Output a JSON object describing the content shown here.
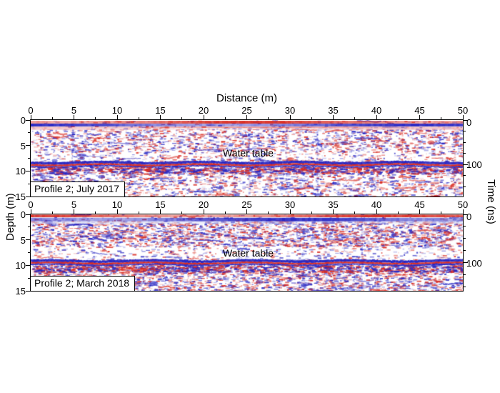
{
  "figure": {
    "x_axis": {
      "title": "Distance (m)",
      "major_ticks": [
        0,
        5,
        10,
        15,
        20,
        25,
        30,
        35,
        40,
        45,
        50
      ],
      "minor_step": 2.5,
      "range": [
        0,
        50
      ]
    },
    "depth_axis": {
      "label": "Depth (m)",
      "major_ticks": [
        0,
        5,
        10,
        15
      ],
      "minor_step": 2.5,
      "range": [
        0,
        15
      ]
    },
    "time_axis": {
      "label": "Time (ns)",
      "major_ticks": [
        0,
        100
      ],
      "minor_step": 25
    },
    "colors": {
      "positive_amplitude": "#d92b21",
      "negative_amplitude": "#2726c3",
      "pink_wash": "#f3bcc2",
      "lavender_wash": "#d9daf2",
      "background": "#ffffff",
      "frame": "#000000",
      "text": "#000000"
    },
    "panels": [
      {
        "id": "july2017",
        "label": "Profile 2; July 2017",
        "annotation": "Water table",
        "water_table_depth_m": 8.7,
        "time_100ns_depth_m": 8.7,
        "seed": 20177,
        "upper_amp": 0.8,
        "mid_amp": 0.5,
        "lower_amp": 0.75,
        "dash_count": 5000,
        "wiggle_count": 95,
        "streak_count": 10,
        "top_bands": [
          {
            "y": 1.0,
            "h": 4.0,
            "c": "pos",
            "a": 0.95
          },
          {
            "y": 5.0,
            "h": 4.0,
            "c": "neg",
            "a": 0.95
          },
          {
            "y": 9.5,
            "h": 1.2,
            "c": "pos",
            "a": 0.75
          },
          {
            "y": 10.7,
            "h": 3.0,
            "c": "pink",
            "a": 0.8
          }
        ]
      },
      {
        "id": "march2018",
        "label": "Profile 2; March 2018",
        "annotation": "Water table",
        "water_table_depth_m": 9.5,
        "time_100ns_depth_m": 9.5,
        "seed": 20183,
        "upper_amp": 1.0,
        "mid_amp": 0.35,
        "lower_amp": 0.95,
        "dash_count": 6500,
        "wiggle_count": 120,
        "streak_count": 8,
        "top_bands": [
          {
            "y": 0.5,
            "h": 3.5,
            "c": "pos",
            "a": 0.95
          },
          {
            "y": 4.8,
            "h": 5.0,
            "c": "neg",
            "a": 0.95
          },
          {
            "y": 10.0,
            "h": 3.0,
            "c": "lav",
            "a": 0.7
          }
        ]
      }
    ]
  },
  "chart_data": [
    {
      "type": "heatmap",
      "title": "Profile 2; July 2017",
      "xlabel": "Distance (m)",
      "x_range": [
        0,
        50
      ],
      "x_ticks": [
        0,
        5,
        10,
        15,
        20,
        25,
        30,
        35,
        40,
        45,
        50
      ],
      "ylabel": "Depth (m)",
      "y_range": [
        0,
        15
      ],
      "y_ticks": [
        0,
        5,
        10,
        15
      ],
      "ylabel_right": "Time (ns)",
      "right_ticks": [
        0,
        100
      ],
      "colormap": "blue-white-red GPR amplitude",
      "annotations": [
        {
          "text": "Water table",
          "x_m": 25,
          "depth_m": 8.7
        }
      ],
      "key_features": [
        "high-amplitude horizontal direct-wave band at 0-1 m depth",
        "continuous high-amplitude water-table reflector at ~8.7 m depth (~100 ns)",
        "scattered diffraction speckle between 2 m and 8 m depth and below the reflector"
      ]
    },
    {
      "type": "heatmap",
      "title": "Profile 2; March 2018",
      "xlabel": "Distance (m)",
      "x_range": [
        0,
        50
      ],
      "x_ticks": [
        0,
        5,
        10,
        15,
        20,
        25,
        30,
        35,
        40,
        45,
        50
      ],
      "ylabel": "Depth (m)",
      "y_range": [
        0,
        15
      ],
      "y_ticks": [
        0,
        5,
        10,
        15
      ],
      "ylabel_right": "Time (ns)",
      "right_ticks": [
        0,
        100
      ],
      "colormap": "blue-white-red GPR amplitude",
      "annotations": [
        {
          "text": "Water table",
          "x_m": 25,
          "depth_m": 9.5
        }
      ],
      "key_features": [
        "high-amplitude horizontal direct-wave band at 0-1 m depth",
        "continuous high-amplitude water-table reflector at ~9.5 m depth (~100 ns), deeper than July 2017",
        "dense diffraction speckle between 2 m and 6 m depth and below the reflector"
      ]
    }
  ]
}
